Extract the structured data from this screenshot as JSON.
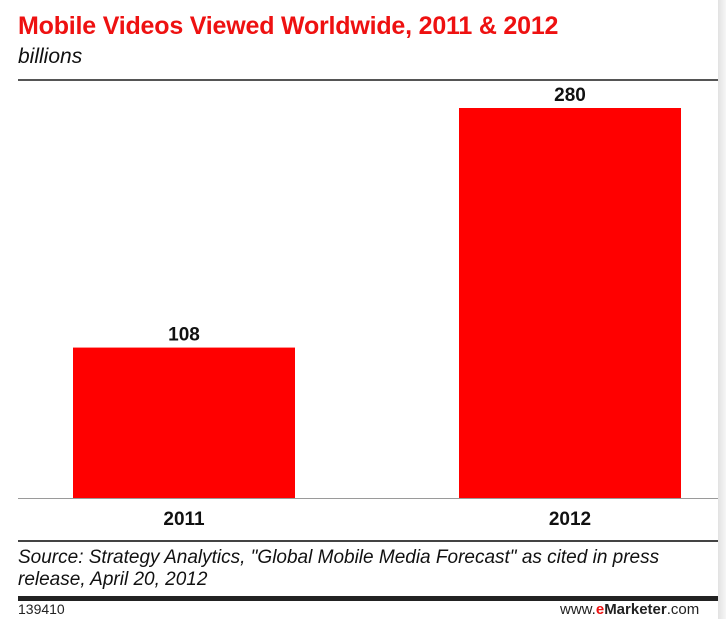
{
  "header": {
    "title": "Mobile Videos Viewed Worldwide, 2011 & 2012",
    "subtitle": "billions"
  },
  "chart_data": {
    "type": "bar",
    "title": "Mobile Videos Viewed Worldwide, 2011 & 2012",
    "subtitle": "billions",
    "categories": [
      "2011",
      "2012"
    ],
    "values": [
      108,
      280
    ],
    "data_labels": [
      "108",
      "280"
    ],
    "ylim": [
      0,
      280
    ],
    "grid": false,
    "legend": "none",
    "colors": {
      "bar": "#ff0000",
      "title": "#ee1111",
      "text": "#111111"
    }
  },
  "footer": {
    "source": "Source: Strategy Analytics, \"Global Mobile Media Forecast\" as cited in press release, April 20, 2012",
    "chart_id": "139410",
    "site_prefix": "www.",
    "site_brand_e": "e",
    "site_brand_name": "Marketer",
    "site_suffix": ".com"
  }
}
